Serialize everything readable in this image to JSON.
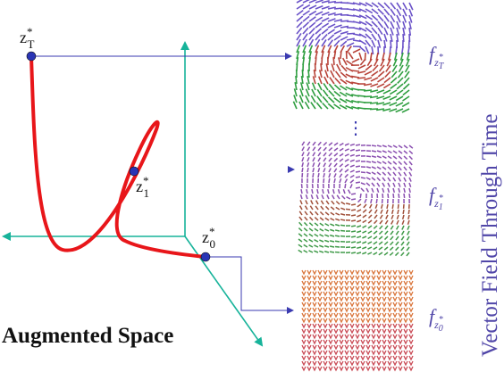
{
  "points": [
    {
      "base": "z",
      "sup": "*",
      "sub": "T"
    },
    {
      "base": "z",
      "sup": "*",
      "sub": "1"
    },
    {
      "base": "z",
      "sup": "*",
      "sub": "0"
    }
  ],
  "space_label": "Augmented Space",
  "fields": [
    {
      "base": "f",
      "sub_base": "z",
      "sub_sup": "*",
      "sub_sub": "T"
    },
    {
      "base": "f",
      "sub_base": "z",
      "sub_sup": "*",
      "sub_sub": "1"
    },
    {
      "base": "f",
      "sub_base": "z",
      "sub_sup": "*",
      "sub_sub": "0"
    }
  ],
  "ellipsis": "⋮",
  "side_label": "Vector Field Through Time"
}
